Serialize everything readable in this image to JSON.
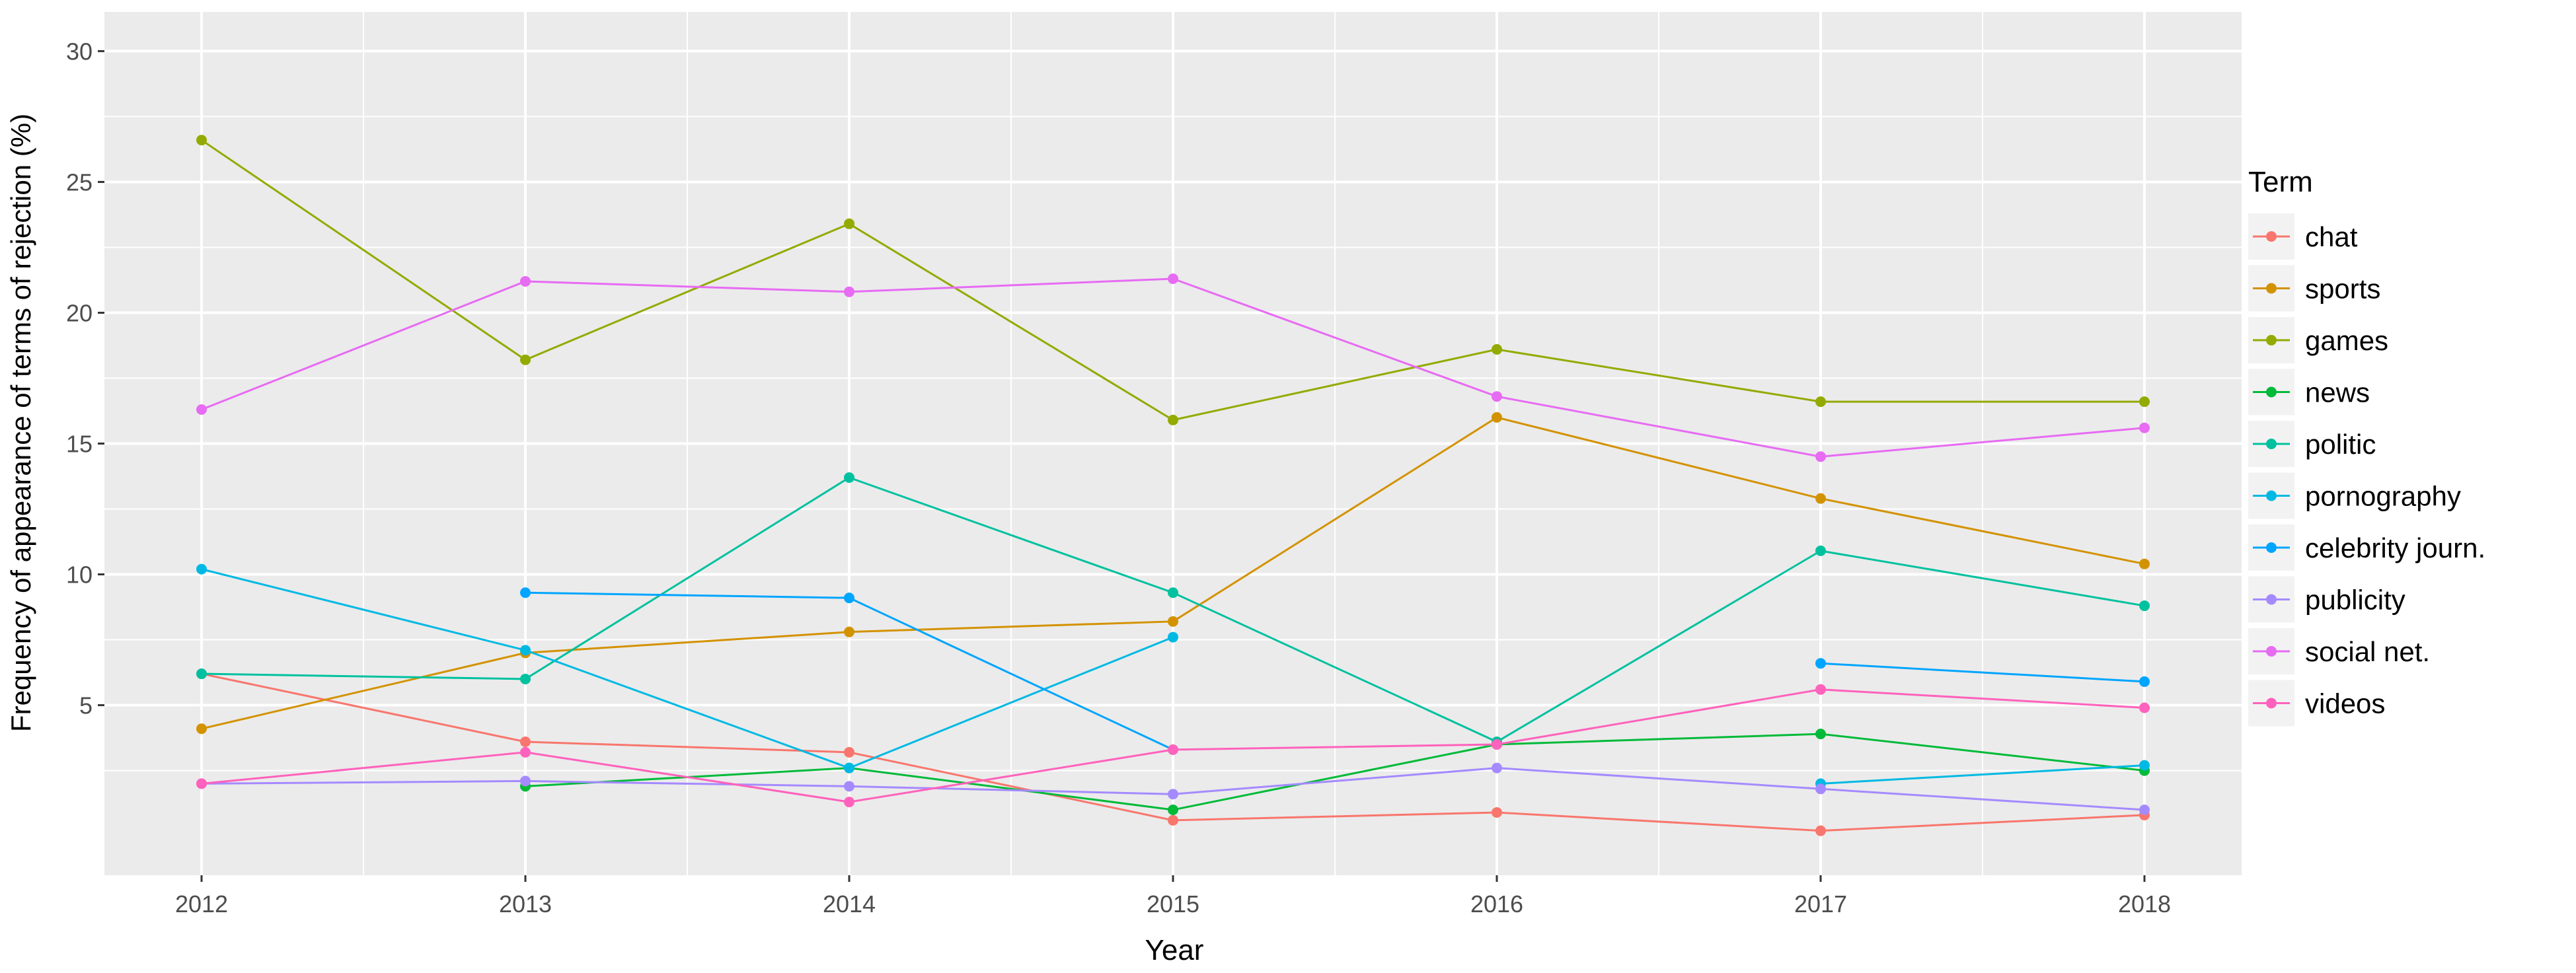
{
  "chart_data": {
    "type": "line",
    "title": "",
    "xlabel": "Year",
    "ylabel": "Frequency of appearance of terms of rejection (%)",
    "x": [
      2012,
      2013,
      2014,
      2015,
      2016,
      2017,
      2018
    ],
    "x_tick_labels": [
      "2012",
      "2013",
      "2014",
      "2015",
      "2016",
      "2017",
      "2018"
    ],
    "y_ticks": [
      5,
      10,
      15,
      20,
      25,
      30
    ],
    "y_tick_labels": [
      "5",
      "10",
      "15",
      "20",
      "25",
      "30"
    ],
    "xlim": [
      2011.7,
      2018.3
    ],
    "ylim": [
      -1.5,
      31.5
    ],
    "grid": true,
    "legend_title": "Term",
    "legend_position": "right",
    "series": [
      {
        "name": "chat",
        "color": "#F8766D",
        "values": [
          6.2,
          3.6,
          3.2,
          0.6,
          0.9,
          0.2,
          0.8
        ]
      },
      {
        "name": "sports",
        "color": "#D39200",
        "values": [
          4.1,
          7.0,
          7.8,
          8.2,
          16.0,
          12.9,
          10.4
        ]
      },
      {
        "name": "games",
        "color": "#93AA00",
        "values": [
          26.6,
          18.2,
          23.4,
          15.9,
          18.6,
          16.6,
          16.6
        ]
      },
      {
        "name": "news",
        "color": "#00BA38",
        "values": [
          null,
          1.9,
          2.6,
          1.0,
          3.5,
          3.9,
          2.5
        ]
      },
      {
        "name": "politic",
        "color": "#00C19F",
        "values": [
          6.2,
          6.0,
          13.7,
          9.3,
          3.6,
          10.9,
          8.8
        ]
      },
      {
        "name": "pornography",
        "color": "#00B9E3",
        "values": [
          10.2,
          7.1,
          2.6,
          7.6,
          null,
          2.0,
          2.7
        ]
      },
      {
        "name": "celebrity journ.",
        "color": "#00A5FF",
        "values": [
          null,
          9.3,
          9.1,
          3.3,
          null,
          6.6,
          5.9
        ]
      },
      {
        "name": "publicity",
        "color": "#A58AFF",
        "values": [
          2.0,
          2.1,
          1.9,
          1.6,
          2.6,
          1.8,
          1.0
        ]
      },
      {
        "name": "social net.",
        "color": "#E76BF3",
        "values": [
          16.3,
          21.2,
          20.8,
          21.3,
          16.8,
          14.5,
          15.6
        ]
      },
      {
        "name": "videos",
        "color": "#FF62BC",
        "values": [
          2.0,
          3.2,
          1.3,
          3.3,
          3.5,
          5.6,
          4.9
        ]
      }
    ]
  }
}
